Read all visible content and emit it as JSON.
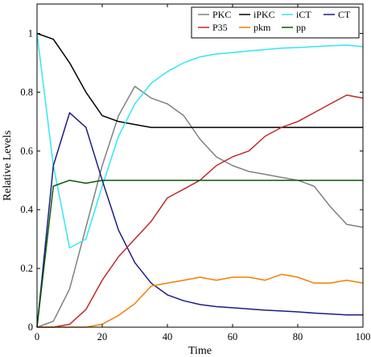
{
  "chart_data": {
    "type": "line",
    "xlabel": "Time",
    "ylabel": "Relative Levels",
    "xlim": [
      0,
      100
    ],
    "ylim": [
      0,
      1.1
    ],
    "xticks": [
      0,
      20,
      40,
      60,
      80,
      100
    ],
    "yticks": [
      0,
      0.2,
      0.4,
      0.6,
      0.8,
      1
    ],
    "ytick_labels": [
      "0",
      "0.2",
      "0.4",
      "0.6",
      "0.8",
      "1"
    ],
    "grid": false,
    "legend_position": "top-right",
    "x": [
      0,
      5,
      10,
      15,
      20,
      25,
      30,
      35,
      40,
      45,
      50,
      55,
      60,
      65,
      70,
      75,
      80,
      85,
      90,
      95,
      100
    ],
    "series": [
      {
        "name": "PKC",
        "color": "#808080",
        "values": [
          0,
          0.02,
          0.13,
          0.34,
          0.55,
          0.72,
          0.82,
          0.78,
          0.76,
          0.72,
          0.64,
          0.58,
          0.55,
          0.53,
          0.52,
          0.51,
          0.5,
          0.48,
          0.41,
          0.35,
          0.34
        ]
      },
      {
        "name": "iPKC",
        "color": "#000000",
        "values": [
          1,
          0.98,
          0.9,
          0.8,
          0.72,
          0.7,
          0.69,
          0.68,
          0.68,
          0.68,
          0.68,
          0.68,
          0.68,
          0.68,
          0.68,
          0.68,
          0.68,
          0.68,
          0.68,
          0.68,
          0.68
        ]
      },
      {
        "name": "iCT",
        "color": "#33e6f0",
        "values": [
          1,
          0.55,
          0.27,
          0.3,
          0.48,
          0.65,
          0.76,
          0.83,
          0.87,
          0.9,
          0.92,
          0.93,
          0.935,
          0.94,
          0.945,
          0.95,
          0.952,
          0.955,
          0.958,
          0.96,
          0.955
        ]
      },
      {
        "name": "CT",
        "color": "#1c1c80",
        "values": [
          0,
          0.55,
          0.73,
          0.68,
          0.5,
          0.33,
          0.22,
          0.15,
          0.11,
          0.09,
          0.077,
          0.07,
          0.066,
          0.062,
          0.058,
          0.055,
          0.052,
          0.048,
          0.045,
          0.042,
          0.042
        ]
      },
      {
        "name": "P35",
        "color": "#c0282a",
        "values": [
          0,
          0,
          0.01,
          0.06,
          0.16,
          0.24,
          0.3,
          0.36,
          0.44,
          0.47,
          0.5,
          0.55,
          0.58,
          0.6,
          0.65,
          0.68,
          0.7,
          0.73,
          0.76,
          0.79,
          0.78
        ]
      },
      {
        "name": "pkm",
        "color": "#f08000",
        "values": [
          0,
          0,
          0,
          0,
          0.01,
          0.04,
          0.08,
          0.14,
          0.15,
          0.16,
          0.17,
          0.16,
          0.17,
          0.17,
          0.16,
          0.18,
          0.17,
          0.15,
          0.15,
          0.16,
          0.15
        ]
      },
      {
        "name": "pp",
        "color": "#0a5a0a",
        "values": [
          0,
          0.48,
          0.5,
          0.49,
          0.5,
          0.5,
          0.5,
          0.5,
          0.5,
          0.5,
          0.5,
          0.5,
          0.5,
          0.5,
          0.5,
          0.5,
          0.5,
          0.5,
          0.5,
          0.5,
          0.5
        ]
      }
    ]
  }
}
